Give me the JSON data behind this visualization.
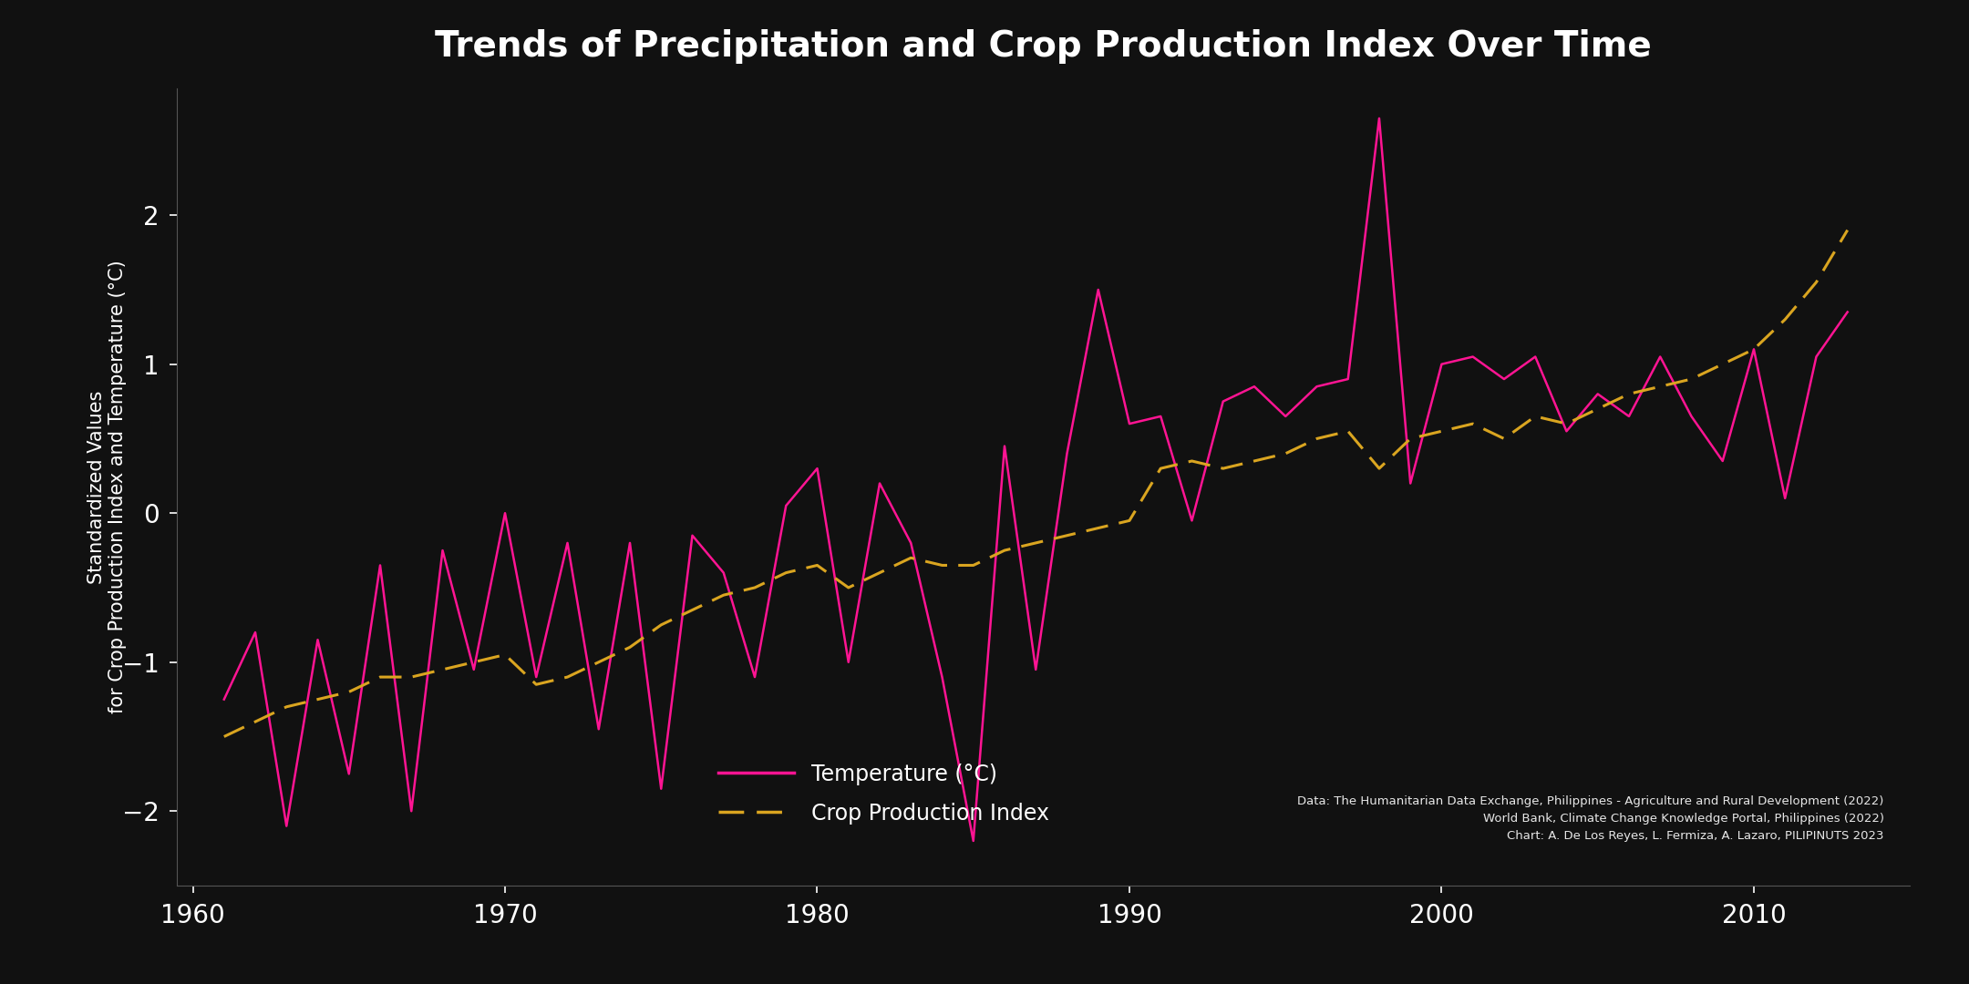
{
  "title": "Trends of Precipitation and Crop Production Index Over Time",
  "ylabel": "Standardized Values\nfor Crop Production Index and Temperature (°C)",
  "background_color": "#111111",
  "text_color": "#ffffff",
  "temp_color": "#ff1493",
  "cpi_color": "#DAA520",
  "citation_line1": "Data: The Humanitarian Data Exchange, Philippines - Agriculture and Rural Development (2022)",
  "citation_line2": "World Bank, Climate Change Knowledge Portal, Philippines (2022)",
  "citation_line3": "Chart: A. De Los Reyes, L. Fermiza, A. Lazaro, PILIPINUTS 2023",
  "legend_temp": "Temperature (°C)",
  "legend_cpi": "Crop Production Index",
  "years_temp": [
    1961,
    1962,
    1963,
    1964,
    1965,
    1966,
    1967,
    1968,
    1969,
    1970,
    1971,
    1972,
    1973,
    1974,
    1975,
    1976,
    1977,
    1978,
    1979,
    1980,
    1981,
    1982,
    1983,
    1984,
    1985,
    1986,
    1987,
    1988,
    1989,
    1990,
    1991,
    1992,
    1993,
    1994,
    1995,
    1996,
    1997,
    1998,
    1999,
    2000,
    2001,
    2002,
    2003,
    2004,
    2005,
    2006,
    2007,
    2008,
    2009,
    2010,
    2011,
    2012,
    2013
  ],
  "temp_values": [
    -1.25,
    -0.8,
    -2.1,
    -0.85,
    -1.75,
    -0.35,
    -2.0,
    -0.25,
    -1.05,
    0.0,
    -1.1,
    -0.2,
    -1.45,
    -0.2,
    -1.85,
    -0.15,
    -0.4,
    -1.1,
    0.05,
    0.3,
    -1.0,
    0.2,
    -0.2,
    -1.1,
    -2.2,
    0.45,
    -1.05,
    0.4,
    1.5,
    0.6,
    0.65,
    -0.05,
    0.75,
    0.85,
    0.65,
    0.85,
    0.9,
    2.65,
    0.2,
    1.0,
    1.05,
    0.9,
    1.05,
    0.55,
    0.8,
    0.65,
    1.05,
    0.65,
    0.35,
    1.1,
    0.1,
    1.05,
    1.35
  ],
  "years_cpi": [
    1961,
    1962,
    1963,
    1964,
    1965,
    1966,
    1967,
    1968,
    1969,
    1970,
    1971,
    1972,
    1973,
    1974,
    1975,
    1976,
    1977,
    1978,
    1979,
    1980,
    1981,
    1982,
    1983,
    1984,
    1985,
    1986,
    1987,
    1988,
    1989,
    1990,
    1991,
    1992,
    1993,
    1994,
    1995,
    1996,
    1997,
    1998,
    1999,
    2000,
    2001,
    2002,
    2003,
    2004,
    2005,
    2006,
    2007,
    2008,
    2009,
    2010,
    2011,
    2012,
    2013
  ],
  "cpi_values": [
    -1.5,
    -1.4,
    -1.3,
    -1.25,
    -1.2,
    -1.1,
    -1.1,
    -1.05,
    -1.0,
    -0.95,
    -1.15,
    -1.1,
    -1.0,
    -0.9,
    -0.75,
    -0.65,
    -0.55,
    -0.5,
    -0.4,
    -0.35,
    -0.5,
    -0.4,
    -0.3,
    -0.35,
    -0.35,
    -0.25,
    -0.2,
    -0.15,
    -0.1,
    -0.05,
    0.3,
    0.35,
    0.3,
    0.35,
    0.4,
    0.5,
    0.55,
    0.3,
    0.5,
    0.55,
    0.6,
    0.5,
    0.65,
    0.6,
    0.7,
    0.8,
    0.85,
    0.9,
    1.0,
    1.1,
    1.3,
    1.55,
    1.9
  ],
  "xlim": [
    1959.5,
    2015
  ],
  "ylim": [
    -2.5,
    2.85
  ],
  "xticks": [
    1960,
    1970,
    1980,
    1990,
    2000,
    2010
  ],
  "yticks": [
    -2,
    -1,
    0,
    1,
    2
  ],
  "figsize": [
    21.6,
    10.8
  ],
  "dpi": 100
}
